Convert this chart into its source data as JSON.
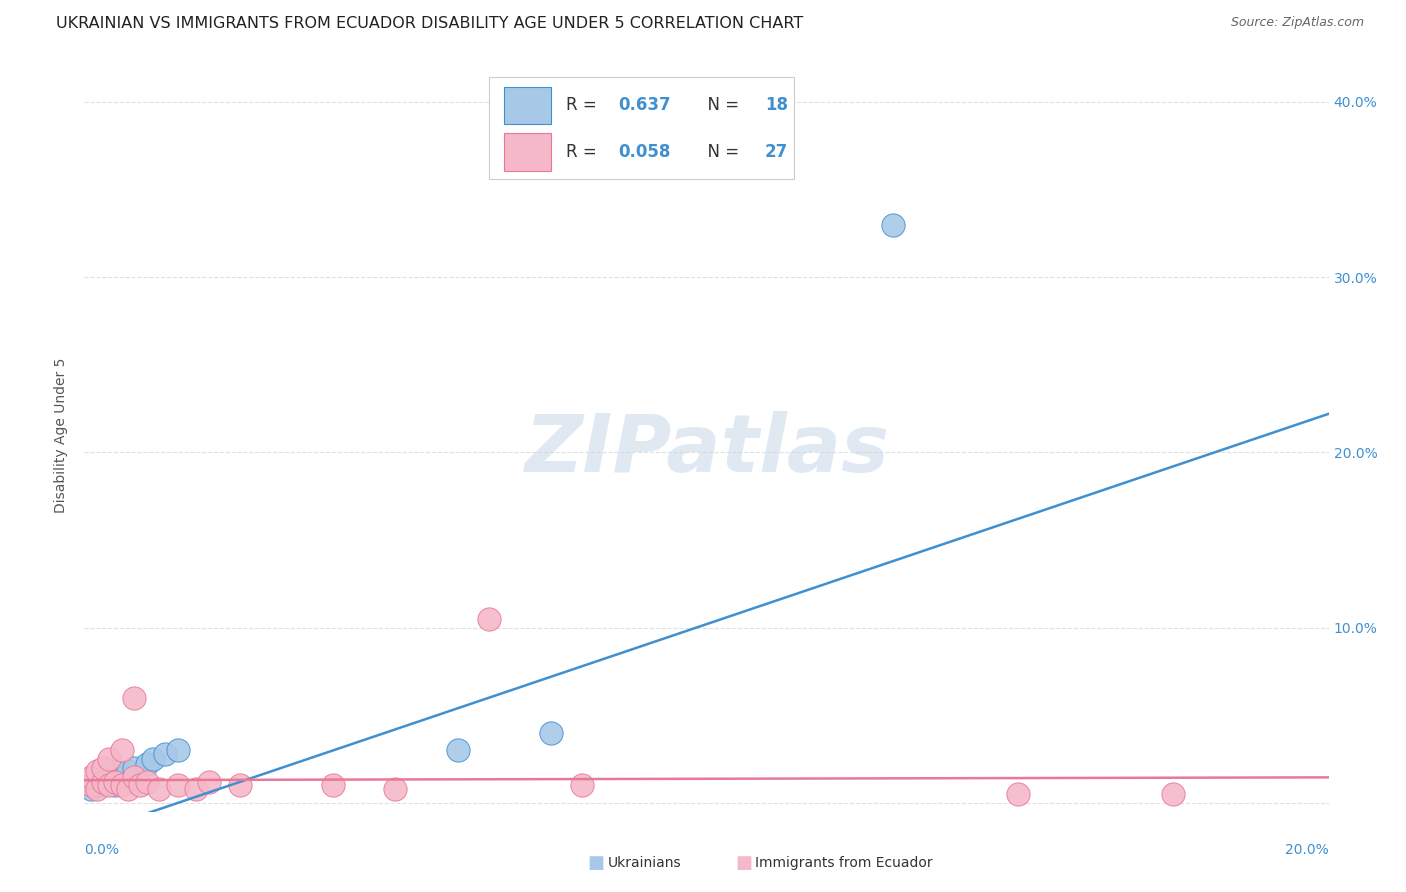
{
  "title": "UKRAINIAN VS IMMIGRANTS FROM ECUADOR DISABILITY AGE UNDER 5 CORRELATION CHART",
  "source": "Source: ZipAtlas.com",
  "ylabel": "Disability Age Under 5",
  "y_tick_vals": [
    0.0,
    0.1,
    0.2,
    0.3,
    0.4
  ],
  "y_tick_labels": [
    "",
    "10.0%",
    "20.0%",
    "30.0%",
    "40.0%"
  ],
  "xlim": [
    0.0,
    0.2
  ],
  "ylim": [
    -0.005,
    0.425
  ],
  "background_color": "#ffffff",
  "watermark_text": "ZIPatlas",
  "legend_r1": "0.637",
  "legend_n1": "18",
  "legend_r2": "0.058",
  "legend_n2": "27",
  "ukrainian_color": "#a8c8e8",
  "ecuador_color": "#f5b8c8",
  "line_ukrainian_color": "#4090d0",
  "line_ecuador_color": "#e87898",
  "ukrainian_x": [
    0.001,
    0.002,
    0.002,
    0.003,
    0.003,
    0.004,
    0.004,
    0.005,
    0.006,
    0.007,
    0.008,
    0.01,
    0.011,
    0.013,
    0.015,
    0.06,
    0.075,
    0.13
  ],
  "ukrainian_y": [
    0.008,
    0.01,
    0.012,
    0.01,
    0.015,
    0.012,
    0.018,
    0.01,
    0.015,
    0.018,
    0.02,
    0.022,
    0.025,
    0.028,
    0.03,
    0.03,
    0.04,
    0.33
  ],
  "ecuador_x": [
    0.001,
    0.001,
    0.002,
    0.002,
    0.003,
    0.003,
    0.004,
    0.004,
    0.005,
    0.006,
    0.006,
    0.007,
    0.008,
    0.008,
    0.009,
    0.01,
    0.012,
    0.015,
    0.018,
    0.02,
    0.025,
    0.04,
    0.05,
    0.065,
    0.08,
    0.15,
    0.175
  ],
  "ecuador_y": [
    0.01,
    0.015,
    0.008,
    0.018,
    0.012,
    0.02,
    0.01,
    0.025,
    0.012,
    0.01,
    0.03,
    0.008,
    0.015,
    0.06,
    0.01,
    0.012,
    0.008,
    0.01,
    0.008,
    0.012,
    0.01,
    0.01,
    0.008,
    0.105,
    0.01,
    0.005,
    0.005
  ],
  "trendline_ukr": [
    -0.018,
    0.222
  ],
  "trendline_ecu_slope": 0.008,
  "trendline_ecu_intercept": 0.013,
  "grid_color": "#e0e0e0",
  "title_fontsize": 11.5,
  "axis_label_fontsize": 10,
  "tick_fontsize": 10,
  "legend_fontsize": 12
}
